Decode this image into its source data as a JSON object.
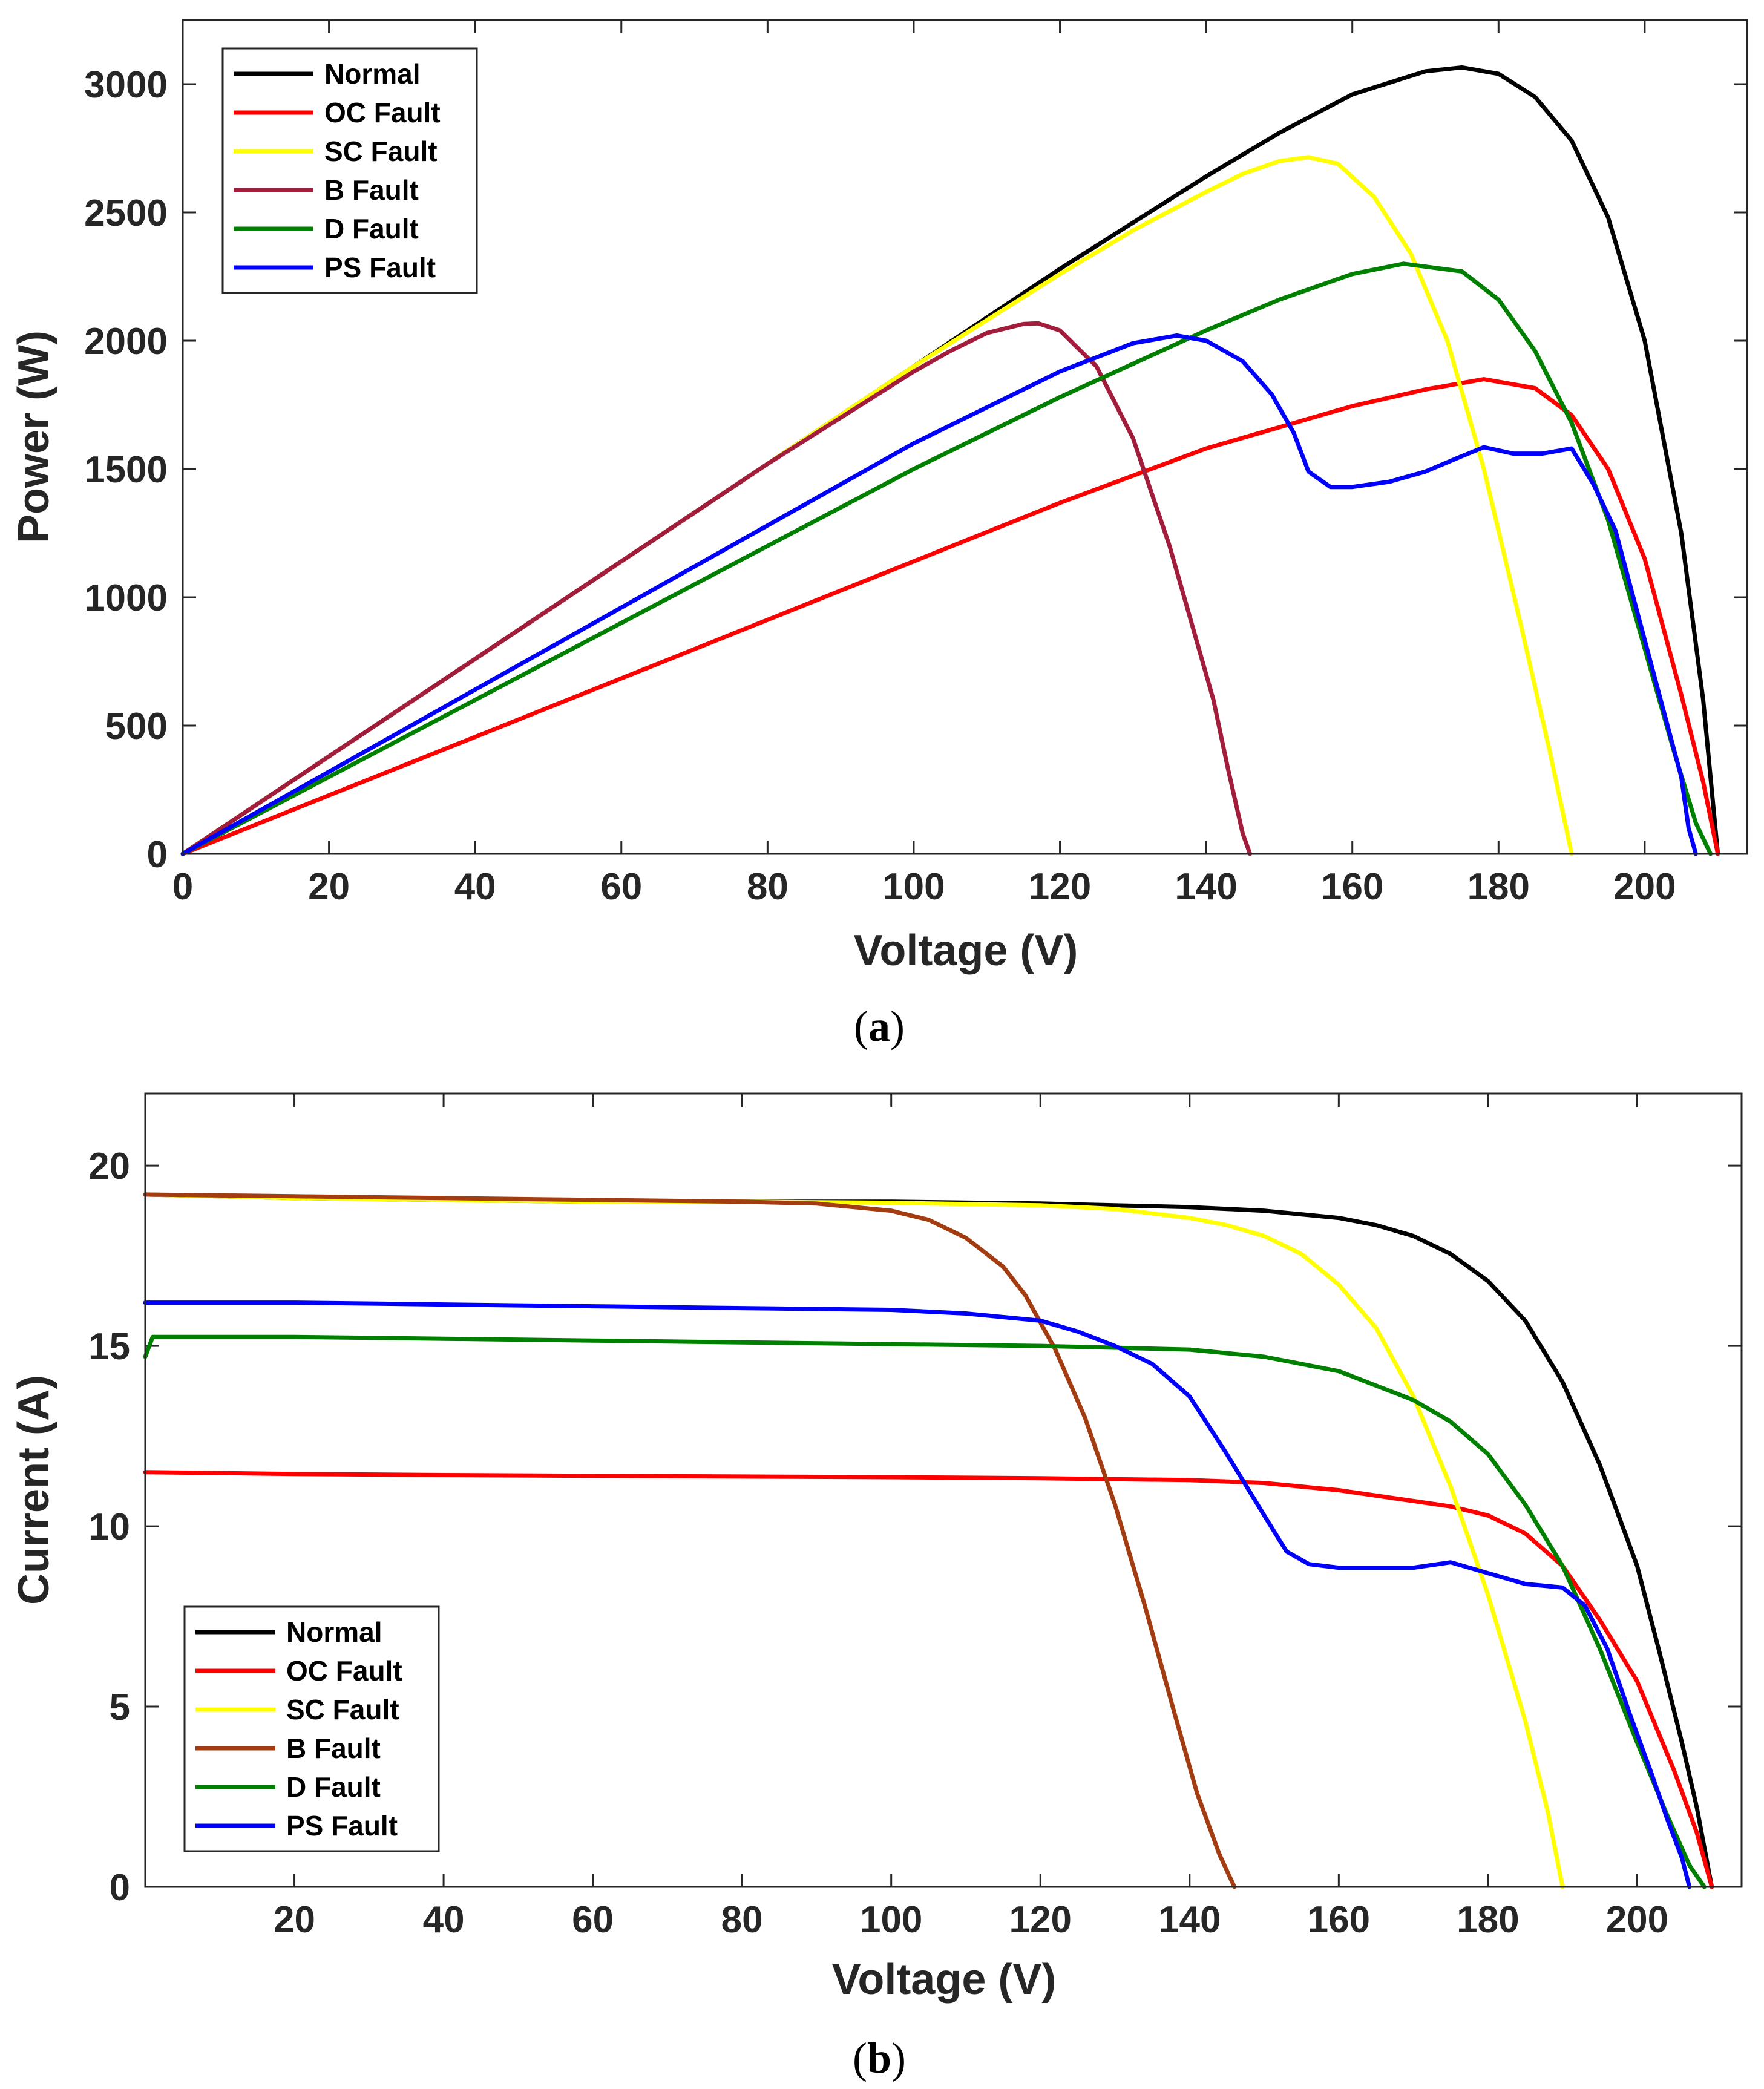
{
  "colors": {
    "Normal": "#000000",
    "OC Fault": "#ff0000",
    "SC Fault": "#ffff00",
    "B Fault (a)": "#a21d3b",
    "B Fault (b)": "#a33c10",
    "D Fault": "#008000",
    "PS Fault": "#0000ff"
  },
  "chart_data": [
    {
      "type": "line",
      "caption": {
        "open": "(",
        "letter": "a",
        "close": ")"
      },
      "title": "",
      "xlabel": "Voltage (V)",
      "ylabel": "Power (W)",
      "xlim": [
        0,
        214
      ],
      "ylim": [
        0,
        3250
      ],
      "xticks": [
        0,
        20,
        40,
        60,
        80,
        100,
        120,
        140,
        160,
        180,
        200
      ],
      "yticks": [
        0,
        500,
        1000,
        1500,
        2000,
        2500,
        3000
      ],
      "grid": false,
      "legend_position": "top-left",
      "series": [
        {
          "name": "Normal",
          "color_key": "Normal",
          "x": [
            0,
            20,
            40,
            60,
            80,
            100,
            120,
            140,
            150,
            160,
            170,
            175,
            180,
            185,
            190,
            195,
            200,
            205,
            208,
            210
          ],
          "y": [
            0,
            380,
            760,
            1140,
            1520,
            1900,
            2280,
            2640,
            2810,
            2960,
            3050,
            3065,
            3040,
            2950,
            2780,
            2480,
            2000,
            1250,
            600,
            0
          ]
        },
        {
          "name": "OC Fault",
          "color_key": "OC Fault",
          "x": [
            0,
            20,
            40,
            60,
            80,
            100,
            120,
            140,
            160,
            170,
            178,
            185,
            190,
            195,
            200,
            205,
            208,
            210
          ],
          "y": [
            0,
            228,
            456,
            684,
            912,
            1140,
            1368,
            1580,
            1745,
            1810,
            1850,
            1815,
            1710,
            1500,
            1150,
            620,
            280,
            0
          ]
        },
        {
          "name": "SC Fault",
          "color_key": "SC Fault",
          "x": [
            0,
            20,
            40,
            60,
            80,
            100,
            120,
            130,
            140,
            145,
            150,
            154,
            158,
            163,
            168,
            173,
            178,
            183,
            187,
            190
          ],
          "y": [
            0,
            380,
            760,
            1140,
            1520,
            1900,
            2260,
            2430,
            2580,
            2650,
            2700,
            2715,
            2690,
            2560,
            2340,
            2000,
            1500,
            900,
            400,
            0
          ]
        },
        {
          "name": "B Fault",
          "color_key": "B Fault (a)",
          "x": [
            0,
            20,
            40,
            60,
            80,
            100,
            105,
            110,
            115,
            117,
            120,
            125,
            130,
            135,
            138,
            141,
            143,
            145,
            146
          ],
          "y": [
            0,
            380,
            760,
            1140,
            1520,
            1880,
            1960,
            2030,
            2065,
            2068,
            2040,
            1900,
            1620,
            1200,
            900,
            600,
            330,
            80,
            0
          ]
        },
        {
          "name": "D Fault",
          "color_key": "D Fault",
          "x": [
            0,
            20,
            40,
            60,
            80,
            100,
            120,
            140,
            150,
            160,
            167,
            175,
            180,
            185,
            190,
            195,
            200,
            204,
            207,
            209
          ],
          "y": [
            0,
            300,
            600,
            900,
            1200,
            1500,
            1780,
            2040,
            2160,
            2260,
            2300,
            2270,
            2160,
            1960,
            1680,
            1300,
            800,
            400,
            120,
            0
          ]
        },
        {
          "name": "PS Fault",
          "color_key": "PS Fault",
          "x": [
            0,
            20,
            40,
            60,
            80,
            100,
            120,
            130,
            136,
            140,
            145,
            149,
            152,
            154,
            157,
            160,
            165,
            170,
            175,
            178,
            182,
            186,
            190,
            193,
            196,
            199,
            202,
            205,
            206,
            207
          ],
          "y": [
            0,
            320,
            640,
            960,
            1280,
            1600,
            1880,
            1990,
            2020,
            2000,
            1920,
            1790,
            1640,
            1490,
            1430,
            1430,
            1450,
            1490,
            1550,
            1585,
            1560,
            1560,
            1580,
            1440,
            1260,
            940,
            620,
            300,
            100,
            0
          ]
        }
      ]
    },
    {
      "type": "line",
      "caption": {
        "open": "(",
        "letter": "b",
        "close": ")"
      },
      "title": "",
      "xlabel": "Voltage (V)",
      "ylabel": "Current (A)",
      "xlim": [
        0,
        214
      ],
      "ylim": [
        0,
        22
      ],
      "xticks": [
        20,
        40,
        60,
        80,
        100,
        120,
        140,
        160,
        180,
        200
      ],
      "yticks": [
        0,
        5,
        10,
        15,
        20
      ],
      "grid": false,
      "legend_position": "bottom-left",
      "series": [
        {
          "name": "Normal",
          "color_key": "Normal",
          "x": [
            0,
            20,
            40,
            60,
            80,
            100,
            120,
            140,
            150,
            160,
            165,
            170,
            175,
            180,
            185,
            190,
            195,
            200,
            203,
            206,
            208,
            210
          ],
          "y": [
            19.2,
            19.1,
            19.05,
            19.0,
            19.0,
            19.0,
            18.95,
            18.85,
            18.75,
            18.55,
            18.35,
            18.05,
            17.55,
            16.8,
            15.7,
            14.0,
            11.7,
            8.9,
            6.5,
            4.0,
            2.2,
            0
          ]
        },
        {
          "name": "OC Fault",
          "color_key": "OC Fault",
          "x": [
            0,
            20,
            40,
            60,
            80,
            100,
            120,
            140,
            150,
            160,
            170,
            175,
            180,
            185,
            190,
            195,
            200,
            205,
            208,
            210
          ],
          "y": [
            11.5,
            11.45,
            11.42,
            11.4,
            11.38,
            11.36,
            11.33,
            11.28,
            11.2,
            11.0,
            10.7,
            10.55,
            10.3,
            9.8,
            8.9,
            7.4,
            5.7,
            3.2,
            1.5,
            0
          ]
        },
        {
          "name": "SC Fault",
          "color_key": "SC Fault",
          "x": [
            0,
            20,
            40,
            60,
            80,
            100,
            120,
            130,
            140,
            145,
            150,
            155,
            160,
            165,
            170,
            175,
            180,
            185,
            188,
            190
          ],
          "y": [
            19.2,
            19.1,
            19.05,
            19.0,
            19.0,
            18.97,
            18.9,
            18.8,
            18.55,
            18.35,
            18.05,
            17.55,
            16.7,
            15.5,
            13.6,
            11.1,
            8.1,
            4.6,
            2.1,
            0
          ]
        },
        {
          "name": "B Fault",
          "color_key": "B Fault (b)",
          "x": [
            0,
            20,
            40,
            60,
            80,
            90,
            100,
            105,
            110,
            115,
            118,
            122,
            126,
            130,
            134,
            138,
            141,
            144,
            146
          ],
          "y": [
            19.2,
            19.15,
            19.1,
            19.05,
            19.0,
            18.95,
            18.75,
            18.5,
            18.0,
            17.2,
            16.4,
            14.9,
            13.0,
            10.6,
            7.8,
            4.8,
            2.6,
            0.9,
            0
          ]
        },
        {
          "name": "D Fault",
          "color_key": "D Fault",
          "x": [
            0,
            1,
            20,
            40,
            60,
            80,
            100,
            120,
            140,
            150,
            160,
            170,
            175,
            180,
            185,
            190,
            195,
            200,
            204,
            207,
            209
          ],
          "y": [
            14.7,
            15.25,
            15.25,
            15.2,
            15.15,
            15.1,
            15.05,
            15.0,
            14.9,
            14.7,
            14.3,
            13.5,
            12.9,
            12.0,
            10.6,
            8.9,
            6.6,
            4.0,
            2.0,
            0.6,
            0
          ]
        },
        {
          "name": "PS Fault",
          "color_key": "PS Fault",
          "x": [
            0,
            20,
            40,
            60,
            80,
            100,
            110,
            120,
            125,
            130,
            135,
            140,
            145,
            150,
            153,
            156,
            160,
            165,
            170,
            175,
            180,
            185,
            190,
            193,
            196,
            199,
            202,
            204,
            206,
            207
          ],
          "y": [
            16.2,
            16.2,
            16.15,
            16.1,
            16.05,
            16.0,
            15.9,
            15.7,
            15.4,
            15.0,
            14.5,
            13.6,
            12.0,
            10.3,
            9.3,
            8.95,
            8.85,
            8.85,
            8.85,
            9.0,
            8.7,
            8.4,
            8.3,
            7.8,
            6.6,
            4.8,
            3.1,
            1.9,
            0.8,
            0
          ]
        }
      ]
    }
  ]
}
